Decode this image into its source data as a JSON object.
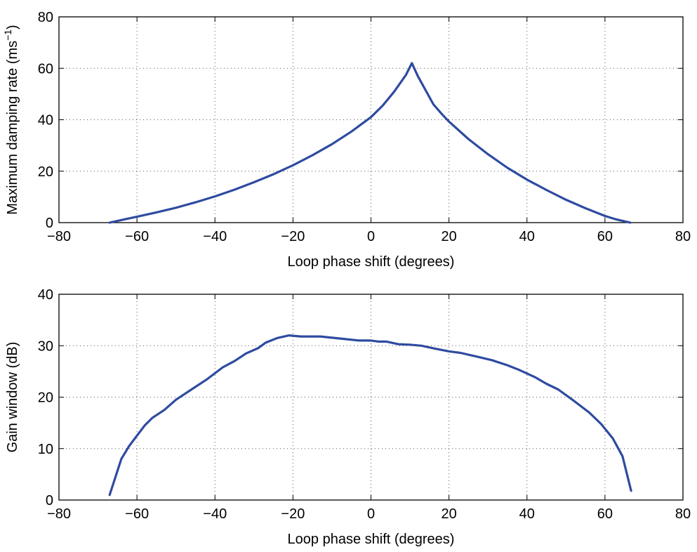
{
  "chart_data": [
    {
      "type": "line",
      "xlabel": "Loop phase shift (degrees)",
      "ylabel": "Maximum damping rate (ms",
      "ylabel_sup": "−1",
      "ylabel_close": ")",
      "xlim": [
        -80,
        80
      ],
      "ylim": [
        0,
        80
      ],
      "xticks": [
        -80,
        -60,
        -40,
        -20,
        0,
        20,
        40,
        60,
        80
      ],
      "xtick_labels": [
        "−80",
        "−60",
        "−40",
        "−20",
        "0",
        "20",
        "40",
        "60",
        "80"
      ],
      "yticks": [
        0,
        20,
        40,
        60,
        80
      ],
      "ytick_labels": [
        "0",
        "20",
        "40",
        "60",
        "80"
      ],
      "grid": true,
      "line_color": "#2e4ba0",
      "series": [
        {
          "x": [
            -67,
            -64,
            -60,
            -55,
            -50,
            -45,
            -40,
            -35,
            -30,
            -25,
            -20,
            -15,
            -10,
            -5,
            0,
            3,
            6,
            9,
            10.5,
            12,
            14,
            16,
            18,
            20,
            25,
            30,
            35,
            40,
            45,
            50,
            55,
            60,
            63,
            66.5
          ],
          "y": [
            0,
            1,
            2.3,
            4,
            5.8,
            7.9,
            10.2,
            12.8,
            15.7,
            18.8,
            22.3,
            26.2,
            30.5,
            35.4,
            41,
            45.5,
            51,
            57.5,
            62,
            57,
            51.5,
            46,
            42.5,
            39.3,
            32.5,
            26.6,
            21.3,
            16.7,
            12.7,
            8.9,
            5.6,
            2.6,
            1.2,
            0
          ]
        }
      ]
    },
    {
      "type": "line",
      "xlabel": "Loop phase shift (degrees)",
      "ylabel": "Gain window (dB)",
      "xlim": [
        -80,
        80
      ],
      "ylim": [
        0,
        40
      ],
      "xticks": [
        -80,
        -60,
        -40,
        -20,
        0,
        20,
        40,
        60,
        80
      ],
      "xtick_labels": [
        "−80",
        "−60",
        "−40",
        "−20",
        "0",
        "20",
        "40",
        "60",
        "80"
      ],
      "yticks": [
        0,
        10,
        20,
        30,
        40
      ],
      "ytick_labels": [
        "0",
        "10",
        "20",
        "30",
        "40"
      ],
      "grid": true,
      "line_color": "#2e4ba0",
      "series": [
        {
          "x": [
            -67,
            -64,
            -62,
            -60,
            -58,
            -56,
            -53,
            -50,
            -46,
            -42,
            -38,
            -35,
            -32,
            -29,
            -27,
            -24,
            -21,
            -18,
            -13,
            -8,
            -3,
            0,
            2,
            4,
            7,
            10,
            13,
            16,
            20,
            23,
            27,
            31,
            35,
            38,
            42,
            45,
            48,
            52,
            56,
            59,
            62,
            64.5,
            66.7
          ],
          "y": [
            1,
            8,
            10.5,
            12.5,
            14.5,
            16,
            17.5,
            19.5,
            21.5,
            23.5,
            25.8,
            27,
            28.5,
            29.5,
            30.6,
            31.5,
            32,
            31.8,
            31.8,
            31.4,
            31,
            31,
            30.8,
            30.8,
            30.3,
            30.2,
            30,
            29.5,
            28.9,
            28.6,
            27.9,
            27.2,
            26.2,
            25.3,
            23.9,
            22.6,
            21.5,
            19.3,
            17,
            14.8,
            12,
            8.5,
            1.8
          ]
        }
      ]
    }
  ]
}
